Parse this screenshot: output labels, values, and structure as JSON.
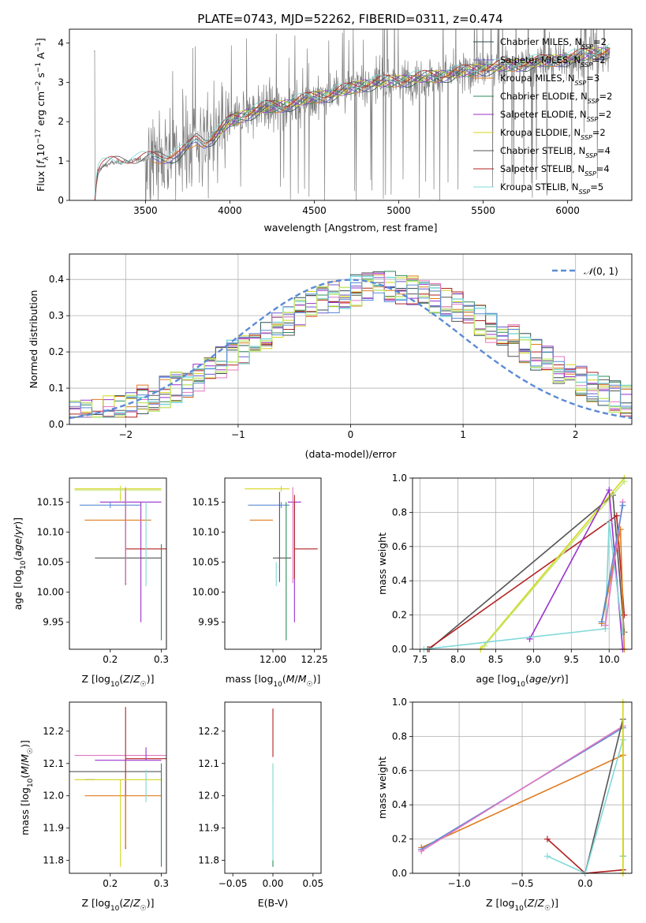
{
  "figure_title": "PLATE=0743, MJD=52262, FIBERID=0311, z=0.474",
  "colors": {
    "Chabrier MILES": "#2f4f4f",
    "Salpeter MILES": "#6a5acd",
    "Kroupa MILES": "#e07b1f",
    "Chabrier ELODIE": "#2e8b57",
    "Salpeter ELODIE": "#9932cc",
    "Kroupa ELODIE": "#d4d61a",
    "Chabrier STELIB": "#555555",
    "Salpeter STELIB": "#b22222",
    "Kroupa STELIB": "#80d8d8",
    "extra_pink": "#e377c2",
    "extra_blue": "#5b8bd6",
    "extra_lime": "#c5e87a",
    "normal": "#5b8bd6",
    "spectrum": "#808080"
  },
  "chart_data": [
    {
      "id": "spectrum",
      "type": "line",
      "title": "PLATE=0743, MJD=52262, FIBERID=0311, z=0.474",
      "xlabel": "wavelength [Angstrom, rest frame]",
      "ylabel": "Flux [f_λ 10^-17 erg cm^-2 s^-1 A^-1]",
      "xlim": [
        3050,
        6380
      ],
      "ylim": [
        0,
        4.35
      ],
      "xticks": [
        3500,
        4000,
        4500,
        5000,
        5500,
        6000
      ],
      "yticks": [
        0,
        1,
        2,
        3,
        4
      ],
      "legend_position": "top-right",
      "legend": [
        {
          "label": "Chabrier MILES, N_SSP=2",
          "base": "Chabrier MILES",
          "sub": "SSP",
          "tail": "=2"
        },
        {
          "label": "Salpeter MILES, N_SSP=2",
          "base": "Salpeter MILES",
          "sub": "SSP",
          "tail": "=2"
        },
        {
          "label": "Kroupa MILES, N_SSP=3",
          "base": "Kroupa MILES",
          "sub": "SSP",
          "tail": "=3"
        },
        {
          "label": "Chabrier ELODIE, N_SSP=2",
          "base": "Chabrier ELODIE",
          "sub": "SSP",
          "tail": "=2"
        },
        {
          "label": "Salpeter ELODIE, N_SSP=2",
          "base": "Salpeter ELODIE",
          "sub": "SSP",
          "tail": "=2"
        },
        {
          "label": "Kroupa ELODIE, N_SSP=2",
          "base": "Kroupa ELODIE",
          "sub": "SSP",
          "tail": "=2"
        },
        {
          "label": "Chabrier STELIB, N_SSP=4",
          "base": "Chabrier STELIB",
          "sub": "SSP",
          "tail": "=4"
        },
        {
          "label": "Salpeter STELIB, N_SSP=4",
          "base": "Salpeter STELIB",
          "sub": "SSP",
          "tail": "=4"
        },
        {
          "label": "Kroupa STELIB, N_SSP=5",
          "base": "Kroupa STELIB",
          "sub": "SSP",
          "tail": "=5"
        }
      ],
      "continuum": [
        [
          3200,
          0.0
        ],
        [
          3215,
          0.72
        ],
        [
          3240,
          0.85
        ],
        [
          3300,
          0.95
        ],
        [
          3400,
          1.0
        ],
        [
          3500,
          1.05
        ],
        [
          3600,
          1.1
        ],
        [
          3700,
          1.18
        ],
        [
          3750,
          1.3
        ],
        [
          3800,
          1.55
        ],
        [
          3850,
          1.5
        ],
        [
          3900,
          1.6
        ],
        [
          3950,
          1.8
        ],
        [
          4000,
          2.0
        ],
        [
          4100,
          2.2
        ],
        [
          4200,
          2.35
        ],
        [
          4300,
          2.4
        ],
        [
          4400,
          2.5
        ],
        [
          4500,
          2.62
        ],
        [
          4600,
          2.7
        ],
        [
          4700,
          2.82
        ],
        [
          4800,
          2.95
        ],
        [
          4900,
          3.0
        ],
        [
          5000,
          3.05
        ],
        [
          5100,
          3.1
        ],
        [
          5200,
          3.15
        ],
        [
          5300,
          3.2
        ],
        [
          5400,
          3.28
        ],
        [
          5500,
          3.35
        ],
        [
          5600,
          3.4
        ],
        [
          5700,
          3.45
        ],
        [
          5800,
          3.5
        ],
        [
          5900,
          3.55
        ],
        [
          6000,
          3.6
        ],
        [
          6100,
          3.7
        ],
        [
          6250,
          3.8
        ]
      ]
    },
    {
      "id": "residuals",
      "type": "histogram",
      "xlabel": "(data-model)/error",
      "ylabel": "Normed distribution",
      "xlim": [
        -2.5,
        2.5
      ],
      "ylim": [
        0,
        0.47
      ],
      "xticks": [
        -2,
        -1,
        0,
        1,
        2
      ],
      "yticks": [
        0.0,
        0.1,
        0.2,
        0.3,
        0.4
      ],
      "grid": true,
      "legend_position": "top-right",
      "normal_label": "N(0,1)",
      "normal_mu": 0,
      "normal_sigma": 1,
      "bin_width": 0.1
    },
    {
      "id": "age_vs_Z",
      "type": "errorbar",
      "xlabel": "Z [log10(Z/Z☉)]",
      "ylabel": "age [log10(age/yr)]",
      "xlim": [
        0.12,
        0.31
      ],
      "ylim": [
        9.905,
        10.19
      ],
      "xticks": [
        0.2,
        0.3
      ],
      "yticks": [
        9.95,
        10.0,
        10.05,
        10.1,
        10.15
      ],
      "points": [
        {
          "s": "Kroupa ELODIE",
          "x": 0.22,
          "xerr": [
            0.09,
            0.08
          ],
          "y": 10.172,
          "yerr": [
            0.02,
            0.005
          ]
        },
        {
          "s": "extra_lime",
          "x": 0.22,
          "xerr": [
            0.09,
            0.08
          ],
          "y": 10.17,
          "yerr": [
            0.005,
            0.005
          ]
        },
        {
          "s": "Salpeter ELODIE",
          "x": 0.26,
          "xerr": [
            0.08,
            0.04
          ],
          "y": 10.15,
          "yerr": [
            0.2,
            0.0
          ]
        },
        {
          "s": "extra_blue",
          "x": 0.2,
          "xerr": [
            0.06,
            0.06
          ],
          "y": 10.145,
          "yerr": [
            0.005,
            0.005
          ]
        },
        {
          "s": "Kroupa MILES",
          "x": 0.2,
          "xerr": [
            0.05,
            0.08
          ],
          "y": 10.12,
          "yerr": [
            0.0,
            0.0
          ]
        },
        {
          "s": "Salpeter STELIB",
          "x": 0.23,
          "xerr": [
            0.0,
            0.08
          ],
          "y": 10.072,
          "yerr": [
            0.06,
            0.1
          ]
        },
        {
          "s": "Chabrier STELIB",
          "x": 0.23,
          "xerr": [
            0.06,
            0.07
          ],
          "y": 10.057,
          "yerr": [
            0.04,
            0.11
          ]
        },
        {
          "s": "extra_pink",
          "x": 0.23,
          "xerr": [
            0.0,
            0.0
          ],
          "y": 10.1,
          "yerr": [
            0.085,
            0.075
          ]
        },
        {
          "s": "Kroupa STELIB",
          "x": 0.27,
          "xerr": [
            0.0,
            0.0
          ],
          "y": 10.12,
          "yerr": [
            0.11,
            0.03
          ]
        },
        {
          "s": "Chabrier ELODIE",
          "x": 0.3,
          "xerr": [
            0.0,
            0.0
          ],
          "y": 10.0,
          "yerr": [
            0.08,
            0.08
          ]
        }
      ]
    },
    {
      "id": "age_vs_mass",
      "type": "errorbar",
      "xlabel": "mass [log10(M/M☉)]",
      "ylabel": "",
      "xlim": [
        11.71,
        12.29
      ],
      "ylim": [
        9.905,
        10.19
      ],
      "xticks": [
        12.0,
        12.25
      ],
      "yticks": [
        9.95,
        10.0,
        10.05,
        10.1,
        10.15
      ],
      "points": [
        {
          "s": "Kroupa ELODIE",
          "x": 12.05,
          "xerr": [
            0.22,
            0.05
          ],
          "y": 10.172,
          "yerr": [
            0.005,
            0.005
          ]
        },
        {
          "s": "Salpeter ELODIE",
          "x": 12.13,
          "xerr": [
            0.04,
            0.04
          ],
          "y": 10.15,
          "yerr": [
            0.2,
            0.0
          ]
        },
        {
          "s": "extra_blue",
          "x": 12.05,
          "xerr": [
            0.2,
            0.05
          ],
          "y": 10.145,
          "yerr": [
            0.005,
            0.005
          ]
        },
        {
          "s": "Kroupa MILES",
          "x": 12.0,
          "xerr": [
            0.14,
            0.0
          ],
          "y": 10.12,
          "yerr": [
            0.0,
            0.0
          ]
        },
        {
          "s": "Salpeter STELIB",
          "x": 12.13,
          "xerr": [
            0.0,
            0.14
          ],
          "y": 10.072,
          "yerr": [
            0.05,
            0.09
          ]
        },
        {
          "s": "Chabrier STELIB",
          "x": 12.04,
          "xerr": [
            0.04,
            0.07
          ],
          "y": 10.057,
          "yerr": [
            0.04,
            0.11
          ]
        },
        {
          "s": "extra_pink",
          "x": 12.12,
          "xerr": [
            0.0,
            0.0
          ],
          "y": 10.1,
          "yerr": [
            0.085,
            0.075
          ]
        },
        {
          "s": "Kroupa STELIB",
          "x": 12.02,
          "xerr": [
            0.0,
            0.0
          ],
          "y": 10.05,
          "yerr": [
            0.04,
            0.0
          ]
        },
        {
          "s": "Chabrier ELODIE",
          "x": 12.08,
          "xerr": [
            0.0,
            0.0
          ],
          "y": 10.03,
          "yerr": [
            0.11,
            0.12
          ]
        }
      ]
    },
    {
      "id": "weight_vs_age",
      "type": "line",
      "xlabel": "age [log10(age/yr)]",
      "ylabel": "mass weight",
      "xlim": [
        7.4,
        10.3
      ],
      "ylim": [
        0,
        1.0
      ],
      "xticks": [
        7.5,
        8.0,
        8.5,
        9.0,
        9.5,
        10.0
      ],
      "yticks": [
        0.0,
        0.2,
        0.4,
        0.6,
        0.8,
        1.0
      ],
      "grid": true,
      "series": [
        {
          "s": "Chabrier STELIB",
          "x": [
            7.62,
            10.05,
            10.2
          ],
          "y": [
            0.0,
            0.9,
            0.1
          ]
        },
        {
          "s": "Salpeter STELIB",
          "x": [
            7.6,
            10.1,
            10.2
          ],
          "y": [
            0.0,
            0.78,
            0.2
          ]
        },
        {
          "s": "Kroupa ELODIE",
          "x": [
            8.3,
            10.2
          ],
          "y": [
            0.0,
            1.0
          ]
        },
        {
          "s": "extra_lime",
          "x": [
            8.35,
            10.2
          ],
          "y": [
            0.02,
            0.98
          ]
        },
        {
          "s": "Salpeter ELODIE",
          "x": [
            8.95,
            10.0,
            10.18
          ],
          "y": [
            0.06,
            0.93,
            0.0
          ]
        },
        {
          "s": "Kroupa STELIB",
          "x": [
            7.55,
            9.95,
            10.0,
            10.18
          ],
          "y": [
            0.0,
            0.12,
            0.74,
            0.1
          ]
        },
        {
          "s": "Kroupa MILES",
          "x": [
            9.9,
            10.15,
            10.2
          ],
          "y": [
            0.15,
            0.7,
            0.0
          ]
        },
        {
          "s": "extra_pink",
          "x": [
            9.95,
            10.18
          ],
          "y": [
            0.14,
            0.86
          ]
        },
        {
          "s": "extra_blue",
          "x": [
            9.9,
            10.18
          ],
          "y": [
            0.16,
            0.84
          ]
        }
      ]
    },
    {
      "id": "mass_vs_Z",
      "type": "errorbar",
      "xlabel": "Z [log10(Z/Z☉)]",
      "ylabel": "mass [log10(M/M☉)]",
      "xlim": [
        0.12,
        0.31
      ],
      "ylim": [
        11.76,
        12.29
      ],
      "xticks": [
        0.2,
        0.3
      ],
      "yticks": [
        11.8,
        11.9,
        12.0,
        12.1,
        12.2
      ],
      "points": [
        {
          "s": "extra_pink",
          "x": 0.22,
          "xerr": [
            0.09,
            0.09
          ],
          "y": 12.125,
          "yerr": [
            0.0,
            0.0
          ]
        },
        {
          "s": "Salpeter STELIB",
          "x": 0.23,
          "xerr": [
            0.0,
            0.08
          ],
          "y": 12.115,
          "yerr": [
            0.28,
            0.16
          ]
        },
        {
          "s": "Salpeter ELODIE",
          "x": 0.27,
          "xerr": [
            0.1,
            0.03
          ],
          "y": 12.11,
          "yerr": [
            0.0,
            0.04
          ]
        },
        {
          "s": "Kroupa MILES",
          "x": 0.23,
          "xerr": [
            0.08,
            0.07
          ],
          "y": 12.0,
          "yerr": [
            0.16,
            0.0
          ]
        },
        {
          "s": "extra_blue",
          "x": 0.17,
          "xerr": [
            0.02,
            0.0
          ],
          "y": 12.05,
          "yerr": [
            0.0,
            0.0
          ]
        },
        {
          "s": "Kroupa ELODIE",
          "x": 0.22,
          "xerr": [
            0.09,
            0.08
          ],
          "y": 12.05,
          "yerr": [
            0.27,
            0.0
          ]
        },
        {
          "s": "Chabrier STELIB",
          "x": 0.22,
          "xerr": [
            0.1,
            0.08
          ],
          "y": 12.075,
          "yerr": [
            0.0,
            0.0
          ]
        },
        {
          "s": "Kroupa STELIB",
          "x": 0.27,
          "xerr": [
            0.0,
            0.0
          ],
          "y": 12.05,
          "yerr": [
            0.07,
            0.03
          ]
        },
        {
          "s": "Chabrier ELODIE",
          "x": 0.3,
          "xerr": [
            0.0,
            0.0
          ],
          "y": 12.0,
          "yerr": [
            0.22,
            0.1
          ]
        }
      ]
    },
    {
      "id": "mass_vs_ebv",
      "type": "errorbar",
      "xlabel": "E(B-V)",
      "ylabel": "",
      "xlim": [
        -0.06,
        0.06
      ],
      "ylim": [
        11.76,
        12.29
      ],
      "xticks": [
        -0.05,
        0.0,
        0.05
      ],
      "yticks": [
        11.8,
        11.9,
        12.0,
        12.1,
        12.2
      ],
      "points": [
        {
          "s": "Salpeter STELIB",
          "x": 0.0,
          "xerr": [
            0,
            0
          ],
          "y": 12.12,
          "yerr": [
            0.0,
            0.15
          ]
        },
        {
          "s": "Kroupa ELODIE",
          "x": 0.0,
          "xerr": [
            0,
            0
          ],
          "y": 12.05,
          "yerr": [
            0.07,
            0.05
          ]
        },
        {
          "s": "Kroupa STELIB",
          "x": 0.0,
          "xerr": [
            0,
            0
          ],
          "y": 12.0,
          "yerr": [
            0.2,
            0.1
          ]
        },
        {
          "s": "Chabrier ELODIE",
          "x": 0.0,
          "xerr": [
            0,
            0
          ],
          "y": 11.8,
          "yerr": [
            0.02,
            0.0
          ]
        }
      ]
    },
    {
      "id": "weight_vs_Z",
      "type": "line",
      "xlabel": "Z [log10(Z/Z☉)]",
      "ylabel": "mass weight",
      "xlim": [
        -1.37,
        0.37
      ],
      "ylim": [
        0,
        1.0
      ],
      "xticks": [
        -1.0,
        -0.5,
        0.0
      ],
      "yticks": [
        0.0,
        0.2,
        0.4,
        0.6,
        0.8,
        1.0
      ],
      "grid": true,
      "series": [
        {
          "s": "Kroupa MILES",
          "x": [
            -1.3,
            0.3,
            0.3
          ],
          "y": [
            0.15,
            0.69,
            0.0
          ]
        },
        {
          "s": "extra_blue",
          "x": [
            -1.3,
            0.3
          ],
          "y": [
            0.14,
            0.85
          ]
        },
        {
          "s": "extra_pink",
          "x": [
            -1.3,
            0.3
          ],
          "y": [
            0.13,
            0.86
          ]
        },
        {
          "s": "Chabrier STELIB",
          "x": [
            0.0,
            0.3,
            0.3
          ],
          "y": [
            0.0,
            0.9,
            0.1
          ]
        },
        {
          "s": "Salpeter STELIB",
          "x": [
            -0.3,
            0.0,
            0.3
          ],
          "y": [
            0.2,
            0.0,
            0.02
          ]
        },
        {
          "s": "Kroupa STELIB",
          "x": [
            -0.3,
            0.0,
            0.3,
            0.3
          ],
          "y": [
            0.1,
            0.0,
            0.78,
            0.1
          ]
        },
        {
          "s": "Kroupa ELODIE",
          "x": [
            0.3,
            0.3
          ],
          "y": [
            0.0,
            1.0
          ]
        }
      ]
    }
  ]
}
